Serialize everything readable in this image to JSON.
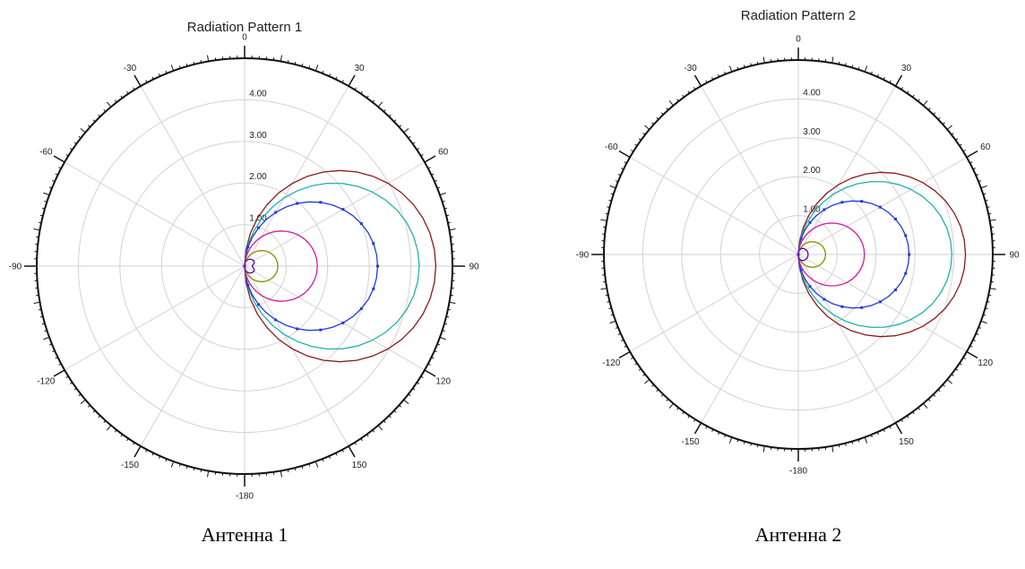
{
  "captions": [
    "Антенна 1",
    "Антенна 2"
  ],
  "chart_data": [
    {
      "type": "polar-line",
      "title": "Radiation Pattern 1",
      "angle_labels": [
        "0",
        "30",
        "60",
        "90",
        "120",
        "150",
        "-180",
        "-150",
        "-120",
        "-90",
        "-60",
        "-30"
      ],
      "radial_tick_labels": [
        "1.00",
        "2.00",
        "3.00",
        "4.00"
      ],
      "rlim": [
        0,
        5
      ],
      "grid": true,
      "theta_zero": "top",
      "theta_direction": "clockwise",
      "series": [
        {
          "color": "#8b1a1a",
          "r_peak": 4.6,
          "exponent": 1.0,
          "dip": 0.0,
          "markers": false
        },
        {
          "color": "#20b2aa",
          "r_peak": 4.2,
          "exponent": 1.15,
          "dip": 0.0,
          "markers": false
        },
        {
          "color": "#1e3cd8",
          "r_peak": 3.2,
          "exponent": 1.1,
          "dip": 0.0,
          "markers": true
        },
        {
          "color": "#d21a9e",
          "r_peak": 1.75,
          "exponent": 1.1,
          "dip": 0.0,
          "markers": false
        },
        {
          "color": "#8b8b00",
          "r_peak": 0.8,
          "exponent": 1.2,
          "dip": 0.0,
          "markers": false
        },
        {
          "color": "#5a00b0",
          "r_peak": 0.28,
          "exponent": 0.6,
          "dip": 0.35,
          "markers": false
        }
      ]
    },
    {
      "type": "polar-line",
      "title": "Radiation Pattern 2",
      "angle_labels": [
        "0",
        "30",
        "60",
        "90",
        "120",
        "150",
        "-180",
        "-150",
        "-120",
        "-90",
        "-60",
        "-30"
      ],
      "radial_tick_labels": [
        "1.00",
        "2.00",
        "3.00",
        "4.00"
      ],
      "rlim": [
        0,
        5
      ],
      "grid": true,
      "theta_zero": "top",
      "theta_direction": "clockwise",
      "series": [
        {
          "color": "#8b1a1a",
          "r_peak": 4.3,
          "exponent": 1.05,
          "dip": 0.0,
          "markers": false
        },
        {
          "color": "#20b2aa",
          "r_peak": 3.95,
          "exponent": 1.15,
          "dip": 0.0,
          "markers": false
        },
        {
          "color": "#1e3cd8",
          "r_peak": 2.85,
          "exponent": 1.1,
          "dip": 0.0,
          "markers": true
        },
        {
          "color": "#d21a9e",
          "r_peak": 1.7,
          "exponent": 1.15,
          "dip": 0.0,
          "markers": false
        },
        {
          "color": "#8b8b00",
          "r_peak": 0.7,
          "exponent": 1.2,
          "dip": 0.0,
          "markers": false
        },
        {
          "color": "#5a00b0",
          "r_peak": 0.25,
          "exponent": 0.5,
          "dip": 0.0,
          "markers": false
        }
      ]
    }
  ]
}
